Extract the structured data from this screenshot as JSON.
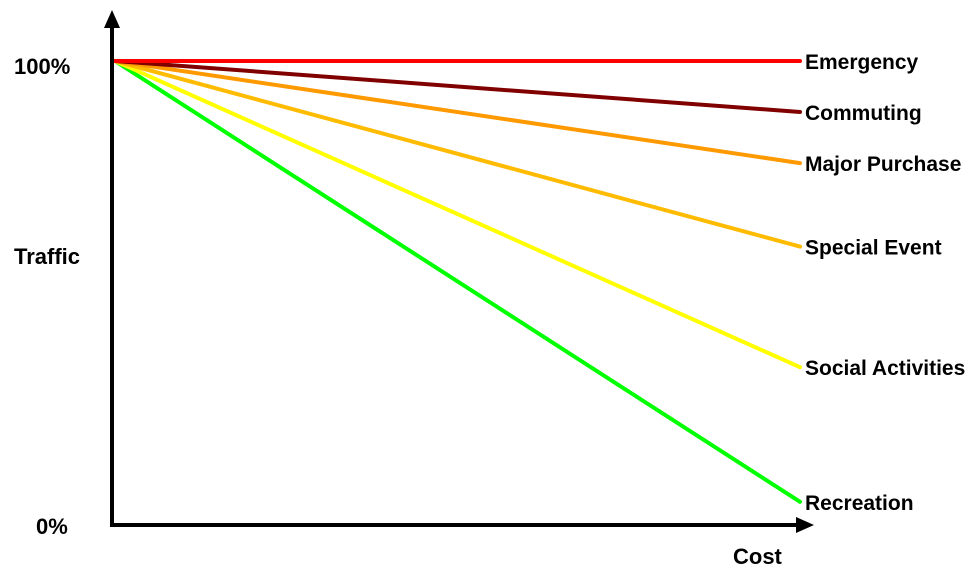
{
  "chart_data": {
    "type": "line",
    "title": "",
    "xlabel": "Cost",
    "ylabel": "Traffic",
    "y_tick_labels": [
      "100%",
      "0%"
    ],
    "ylim": [
      0,
      100
    ],
    "xlim": [
      0,
      1
    ],
    "grid": false,
    "legend": "labels at right end of each line",
    "x": [
      0,
      1
    ],
    "series": [
      {
        "name": "Emergency",
        "color": "#ff0000",
        "values": [
          100,
          100
        ]
      },
      {
        "name": "Commuting",
        "color": "#800000",
        "values": [
          100,
          89
        ]
      },
      {
        "name": "Major Purchase",
        "color": "#ff9900",
        "values": [
          100,
          78
        ]
      },
      {
        "name": "Special Event",
        "color": "#ffbb00",
        "values": [
          100,
          60
        ]
      },
      {
        "name": "Social Activities",
        "color": "#ffff00",
        "values": [
          100,
          34
        ]
      },
      {
        "name": "Recreation",
        "color": "#00ff00",
        "values": [
          100,
          5
        ]
      }
    ]
  }
}
